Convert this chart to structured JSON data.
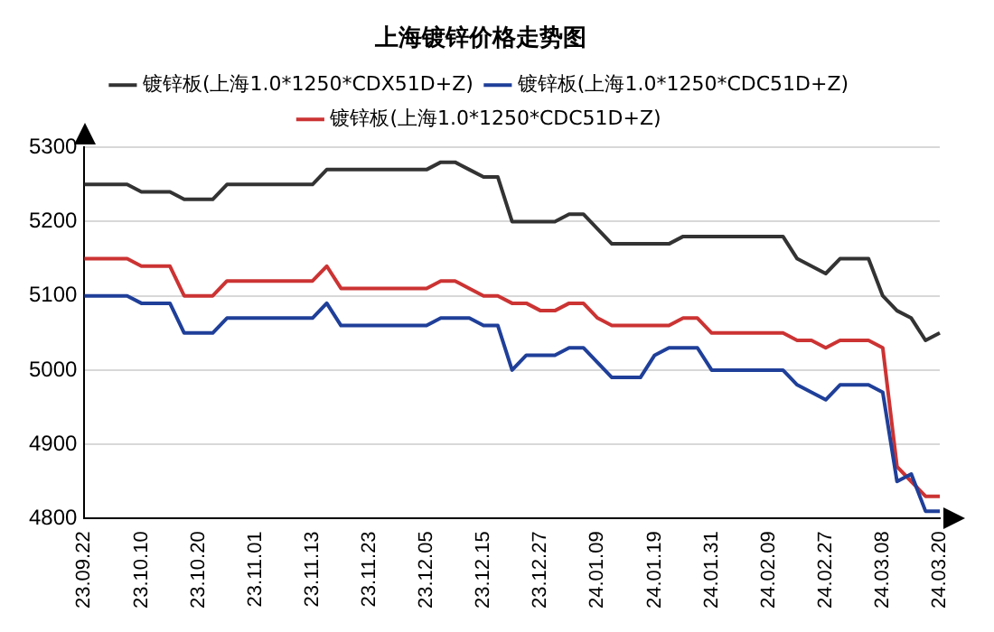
{
  "chart_data": {
    "type": "line",
    "title": "上海镀锌价格走势图",
    "categories": [
      "23.09.22",
      null,
      null,
      null,
      "23.10.10",
      null,
      null,
      null,
      "23.10.20",
      null,
      null,
      null,
      "23.11.01",
      null,
      null,
      null,
      "23.11.13",
      null,
      null,
      null,
      "23.11.23",
      null,
      null,
      null,
      "23.12.05",
      null,
      null,
      null,
      "23.12.15",
      null,
      null,
      null,
      "23.12.27",
      null,
      null,
      null,
      "24.01.09",
      null,
      null,
      null,
      "24.01.19",
      null,
      null,
      null,
      "24.01.31",
      null,
      null,
      null,
      "24.02.09",
      null,
      null,
      null,
      "24.02.27",
      null,
      null,
      null,
      "24.03.08",
      null,
      null,
      null,
      "24.03.20"
    ],
    "series": [
      {
        "name": "镀锌板(上海1.0*1250*CDX51D+Z)",
        "color": "#333333",
        "values": [
          5250,
          5250,
          5250,
          5250,
          5240,
          5240,
          5240,
          5230,
          5230,
          5230,
          5250,
          5250,
          5250,
          5250,
          5250,
          5250,
          5250,
          5270,
          5270,
          5270,
          5270,
          5270,
          5270,
          5270,
          5270,
          5280,
          5280,
          5270,
          5260,
          5260,
          5200,
          5200,
          5200,
          5200,
          5210,
          5210,
          5190,
          5170,
          5170,
          5170,
          5170,
          5170,
          5180,
          5180,
          5180,
          5180,
          5180,
          5180,
          5180,
          5180,
          5150,
          5140,
          5130,
          5150,
          5150,
          5150,
          5100,
          5080,
          5070,
          5040,
          5050
        ]
      },
      {
        "name": "镀锌板(上海1.0*1250*CDC51D+Z)",
        "color": "#1f3f99",
        "values": [
          5100,
          5100,
          5100,
          5100,
          5090,
          5090,
          5090,
          5050,
          5050,
          5050,
          5070,
          5070,
          5070,
          5070,
          5070,
          5070,
          5070,
          5090,
          5060,
          5060,
          5060,
          5060,
          5060,
          5060,
          5060,
          5070,
          5070,
          5070,
          5060,
          5060,
          5000,
          5020,
          5020,
          5020,
          5030,
          5030,
          5010,
          4990,
          4990,
          4990,
          5020,
          5030,
          5030,
          5030,
          5000,
          5000,
          5000,
          5000,
          5000,
          5000,
          4980,
          4970,
          4960,
          4980,
          4980,
          4980,
          4970,
          4850,
          4860,
          4810,
          4810
        ]
      },
      {
        "name": "镀锌板(上海1.0*1250*CDC51D+Z)",
        "color": "#cc3333",
        "values": [
          5150,
          5150,
          5150,
          5150,
          5140,
          5140,
          5140,
          5100,
          5100,
          5100,
          5120,
          5120,
          5120,
          5120,
          5120,
          5120,
          5120,
          5140,
          5110,
          5110,
          5110,
          5110,
          5110,
          5110,
          5110,
          5120,
          5120,
          5110,
          5100,
          5100,
          5090,
          5090,
          5080,
          5080,
          5090,
          5090,
          5070,
          5060,
          5060,
          5060,
          5060,
          5060,
          5070,
          5070,
          5050,
          5050,
          5050,
          5050,
          5050,
          5050,
          5040,
          5040,
          5030,
          5040,
          5040,
          5040,
          5030,
          4870,
          4850,
          4830,
          4830
        ]
      }
    ],
    "ylim": [
      4800,
      5300
    ],
    "yticks": [
      4800,
      4900,
      5000,
      5100,
      5200,
      5300
    ],
    "grid": "y",
    "legend": "top",
    "marker": "none",
    "line_style": "solid"
  }
}
